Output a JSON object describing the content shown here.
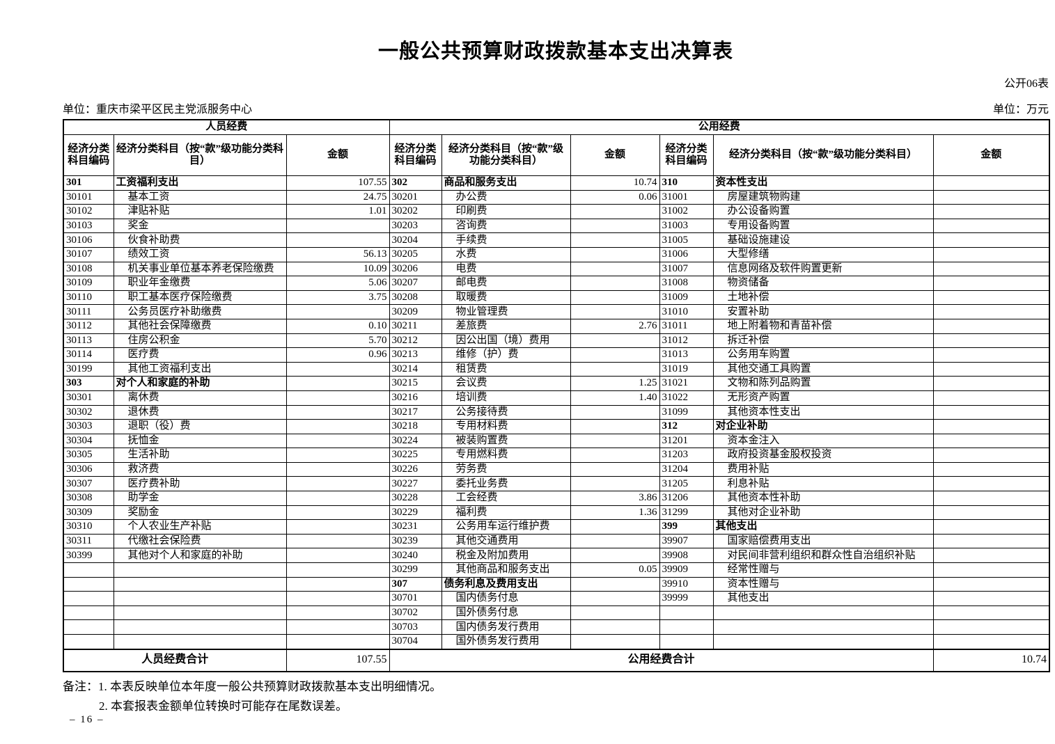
{
  "page": {
    "title": "一般公共预算财政拨款基本支出决算表",
    "form_no": "公开06表",
    "unit_name": "单位：重庆市梁平区民主党派服务中心",
    "unit_currency": "单位：万元",
    "page_no": "– 16 –"
  },
  "table": {
    "group_headers": {
      "personnel": "人员经费",
      "public": "公用经费"
    },
    "col_headers": {
      "code": "经济分类科目编码",
      "subject": "经济分类科目（按“款”级功能分类科目）",
      "amount": "金额"
    },
    "rows": [
      [
        "301",
        "工资福利支出",
        "107.55",
        "302",
        "商品和服务支出",
        "10.74",
        "310",
        "资本性支出",
        ""
      ],
      [
        "30101",
        "基本工资",
        "24.75",
        "30201",
        "办公费",
        "0.06",
        "31001",
        "房屋建筑物购建",
        ""
      ],
      [
        "30102",
        "津贴补贴",
        "1.01",
        "30202",
        "印刷费",
        "",
        "31002",
        "办公设备购置",
        ""
      ],
      [
        "30103",
        "奖金",
        "",
        "30203",
        "咨询费",
        "",
        "31003",
        "专用设备购置",
        ""
      ],
      [
        "30106",
        "伙食补助费",
        "",
        "30204",
        "手续费",
        "",
        "31005",
        "基础设施建设",
        ""
      ],
      [
        "30107",
        "绩效工资",
        "56.13",
        "30205",
        "水费",
        "",
        "31006",
        "大型修缮",
        ""
      ],
      [
        "30108",
        "机关事业单位基本养老保险缴费",
        "10.09",
        "30206",
        "电费",
        "",
        "31007",
        "信息网络及软件购置更新",
        ""
      ],
      [
        "30109",
        "职业年金缴费",
        "5.06",
        "30207",
        "邮电费",
        "",
        "31008",
        "物资储备",
        ""
      ],
      [
        "30110",
        "职工基本医疗保险缴费",
        "3.75",
        "30208",
        "取暖费",
        "",
        "31009",
        "土地补偿",
        ""
      ],
      [
        "30111",
        "公务员医疗补助缴费",
        "",
        "30209",
        "物业管理费",
        "",
        "31010",
        "安置补助",
        ""
      ],
      [
        "30112",
        "其他社会保障缴费",
        "0.10",
        "30211",
        "差旅费",
        "2.76",
        "31011",
        "地上附着物和青苗补偿",
        ""
      ],
      [
        "30113",
        "住房公积金",
        "5.70",
        "30212",
        "因公出国（境）费用",
        "",
        "31012",
        "拆迁补偿",
        ""
      ],
      [
        "30114",
        "医疗费",
        "0.96",
        "30213",
        "维修（护）费",
        "",
        "31013",
        "公务用车购置",
        ""
      ],
      [
        "30199",
        "其他工资福利支出",
        "",
        "30214",
        "租赁费",
        "",
        "31019",
        "其他交通工具购置",
        ""
      ],
      [
        "303",
        "对个人和家庭的补助",
        "",
        "30215",
        "会议费",
        "1.25",
        "31021",
        "文物和陈列品购置",
        ""
      ],
      [
        "30301",
        "离休费",
        "",
        "30216",
        "培训费",
        "1.40",
        "31022",
        "无形资产购置",
        ""
      ],
      [
        "30302",
        "退休费",
        "",
        "30217",
        "公务接待费",
        "",
        "31099",
        "其他资本性支出",
        ""
      ],
      [
        "30303",
        "退职（役）费",
        "",
        "30218",
        "专用材料费",
        "",
        "312",
        "对企业补助",
        ""
      ],
      [
        "30304",
        "抚恤金",
        "",
        "30224",
        "被装购置费",
        "",
        "31201",
        "资本金注入",
        ""
      ],
      [
        "30305",
        "生活补助",
        "",
        "30225",
        "专用燃料费",
        "",
        "31203",
        "政府投资基金股权投资",
        ""
      ],
      [
        "30306",
        "救济费",
        "",
        "30226",
        "劳务费",
        "",
        "31204",
        "费用补贴",
        ""
      ],
      [
        "30307",
        "医疗费补助",
        "",
        "30227",
        "委托业务费",
        "",
        "31205",
        "利息补贴",
        ""
      ],
      [
        "30308",
        "助学金",
        "",
        "30228",
        "工会经费",
        "3.86",
        "31206",
        "其他资本性补助",
        ""
      ],
      [
        "30309",
        "奖励金",
        "",
        "30229",
        "福利费",
        "1.36",
        "31299",
        "其他对企业补助",
        ""
      ],
      [
        "30310",
        "个人农业生产补贴",
        "",
        "30231",
        "公务用车运行维护费",
        "",
        "399",
        "其他支出",
        ""
      ],
      [
        "30311",
        "代缴社会保险费",
        "",
        "30239",
        "其他交通费用",
        "",
        "39907",
        "国家赔偿费用支出",
        ""
      ],
      [
        "30399",
        "其他对个人和家庭的补助",
        "",
        "30240",
        "税金及附加费用",
        "",
        "39908",
        "对民间非营利组织和群众性自治组织补贴",
        ""
      ],
      [
        "",
        "",
        "",
        "30299",
        "其他商品和服务支出",
        "0.05",
        "39909",
        "经常性赠与",
        ""
      ],
      [
        "",
        "",
        "",
        "307",
        "债务利息及费用支出",
        "",
        "39910",
        "资本性赠与",
        ""
      ],
      [
        "",
        "",
        "",
        "30701",
        "国内债务付息",
        "",
        "39999",
        "其他支出",
        ""
      ],
      [
        "",
        "",
        "",
        "30702",
        "国外债务付息",
        "",
        "",
        "",
        ""
      ],
      [
        "",
        "",
        "",
        "30703",
        "国内债务发行费用",
        "",
        "",
        "",
        ""
      ],
      [
        "",
        "",
        "",
        "30704",
        "国外债务发行费用",
        "",
        "",
        "",
        ""
      ]
    ],
    "footer": {
      "personnel_total_label": "人员经费合计",
      "personnel_total_value": "107.55",
      "public_total_label": "公用经费合计",
      "public_total_value": "10.74"
    }
  },
  "notes": {
    "line1": "备注：1. 本表反映单位本年度一般公共预算财政拨款基本支出明细情况。",
    "line2": "2. 本套报表金额单位转换时可能存在尾数误差。"
  }
}
